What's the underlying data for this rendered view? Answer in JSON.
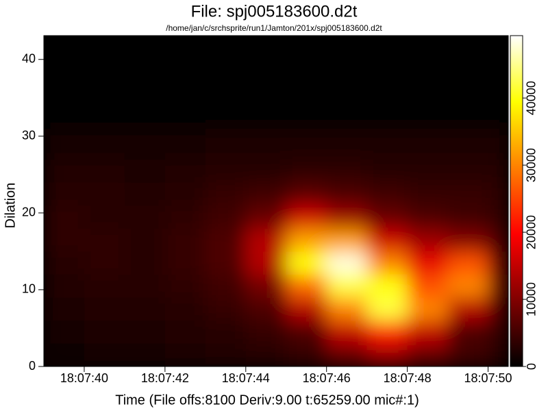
{
  "chart_data": {
    "type": "heatmap",
    "title": "File: spj005183600.d2t",
    "subtitle": "/home/jan/c/srchsprite/run1/Jamton/201x/spj005183600.d2t",
    "x_label": "Time (File offs:8100 Deriv:9.00 t:65259.00 mic#:1)",
    "y_label": "Dilation",
    "colormap": "hot",
    "x_bins": [
      39,
      40,
      41,
      42,
      43,
      44,
      45,
      46,
      47,
      48,
      49,
      50,
      50.5
    ],
    "y_bins": [
      0,
      3,
      6,
      9,
      12,
      15,
      18,
      21,
      24,
      27,
      31,
      43.1
    ],
    "z": [
      [
        1000,
        1500,
        1500,
        2000,
        2500,
        3000,
        4000,
        8000,
        12000,
        8000,
        5000,
        3000
      ],
      [
        1500,
        2000,
        2000,
        2500,
        3000,
        4000,
        6000,
        15000,
        22000,
        15000,
        6000,
        4000
      ],
      [
        2000,
        2500,
        2500,
        3000,
        4000,
        6000,
        14000,
        30000,
        42000,
        30000,
        14000,
        6000
      ],
      [
        2500,
        3000,
        3000,
        3500,
        5000,
        9000,
        28000,
        42000,
        40000,
        26000,
        30000,
        8000
      ],
      [
        3000,
        3500,
        3000,
        4000,
        6000,
        14000,
        40000,
        48000,
        30000,
        18000,
        26000,
        8000
      ],
      [
        3500,
        3500,
        3000,
        4000,
        6000,
        14000,
        32000,
        32000,
        16000,
        12000,
        10000,
        6000
      ],
      [
        3500,
        3000,
        3000,
        3500,
        5000,
        8000,
        16000,
        12000,
        8000,
        6000,
        5000,
        4000
      ],
      [
        3000,
        3000,
        2500,
        3000,
        4000,
        5000,
        7000,
        6000,
        5000,
        4000,
        4000,
        3500
      ],
      [
        2500,
        2500,
        2000,
        2500,
        3000,
        3000,
        3500,
        3500,
        3000,
        3000,
        3000,
        3000
      ],
      [
        1500,
        1500,
        1500,
        1500,
        2000,
        2000,
        2000,
        2000,
        2000,
        2000,
        2000,
        2000
      ],
      [
        0,
        0,
        0,
        0,
        0,
        0,
        0,
        0,
        0,
        0,
        0,
        0
      ]
    ],
    "xlim": [
      39,
      50.5
    ],
    "xticks": [
      {
        "value": 40,
        "label": "18:07:40"
      },
      {
        "value": 42,
        "label": "18:07:42"
      },
      {
        "value": 44,
        "label": "18:07:44"
      },
      {
        "value": 46,
        "label": "18:07:46"
      },
      {
        "value": 48,
        "label": "18:07:48"
      },
      {
        "value": 50,
        "label": "18:07:50"
      }
    ],
    "ylim": [
      0,
      43.1
    ],
    "yticks": [
      0,
      10,
      20,
      30,
      40
    ],
    "zlim": [
      0,
      49300
    ],
    "zticks": [
      0,
      10000,
      20000,
      30000,
      40000
    ]
  }
}
